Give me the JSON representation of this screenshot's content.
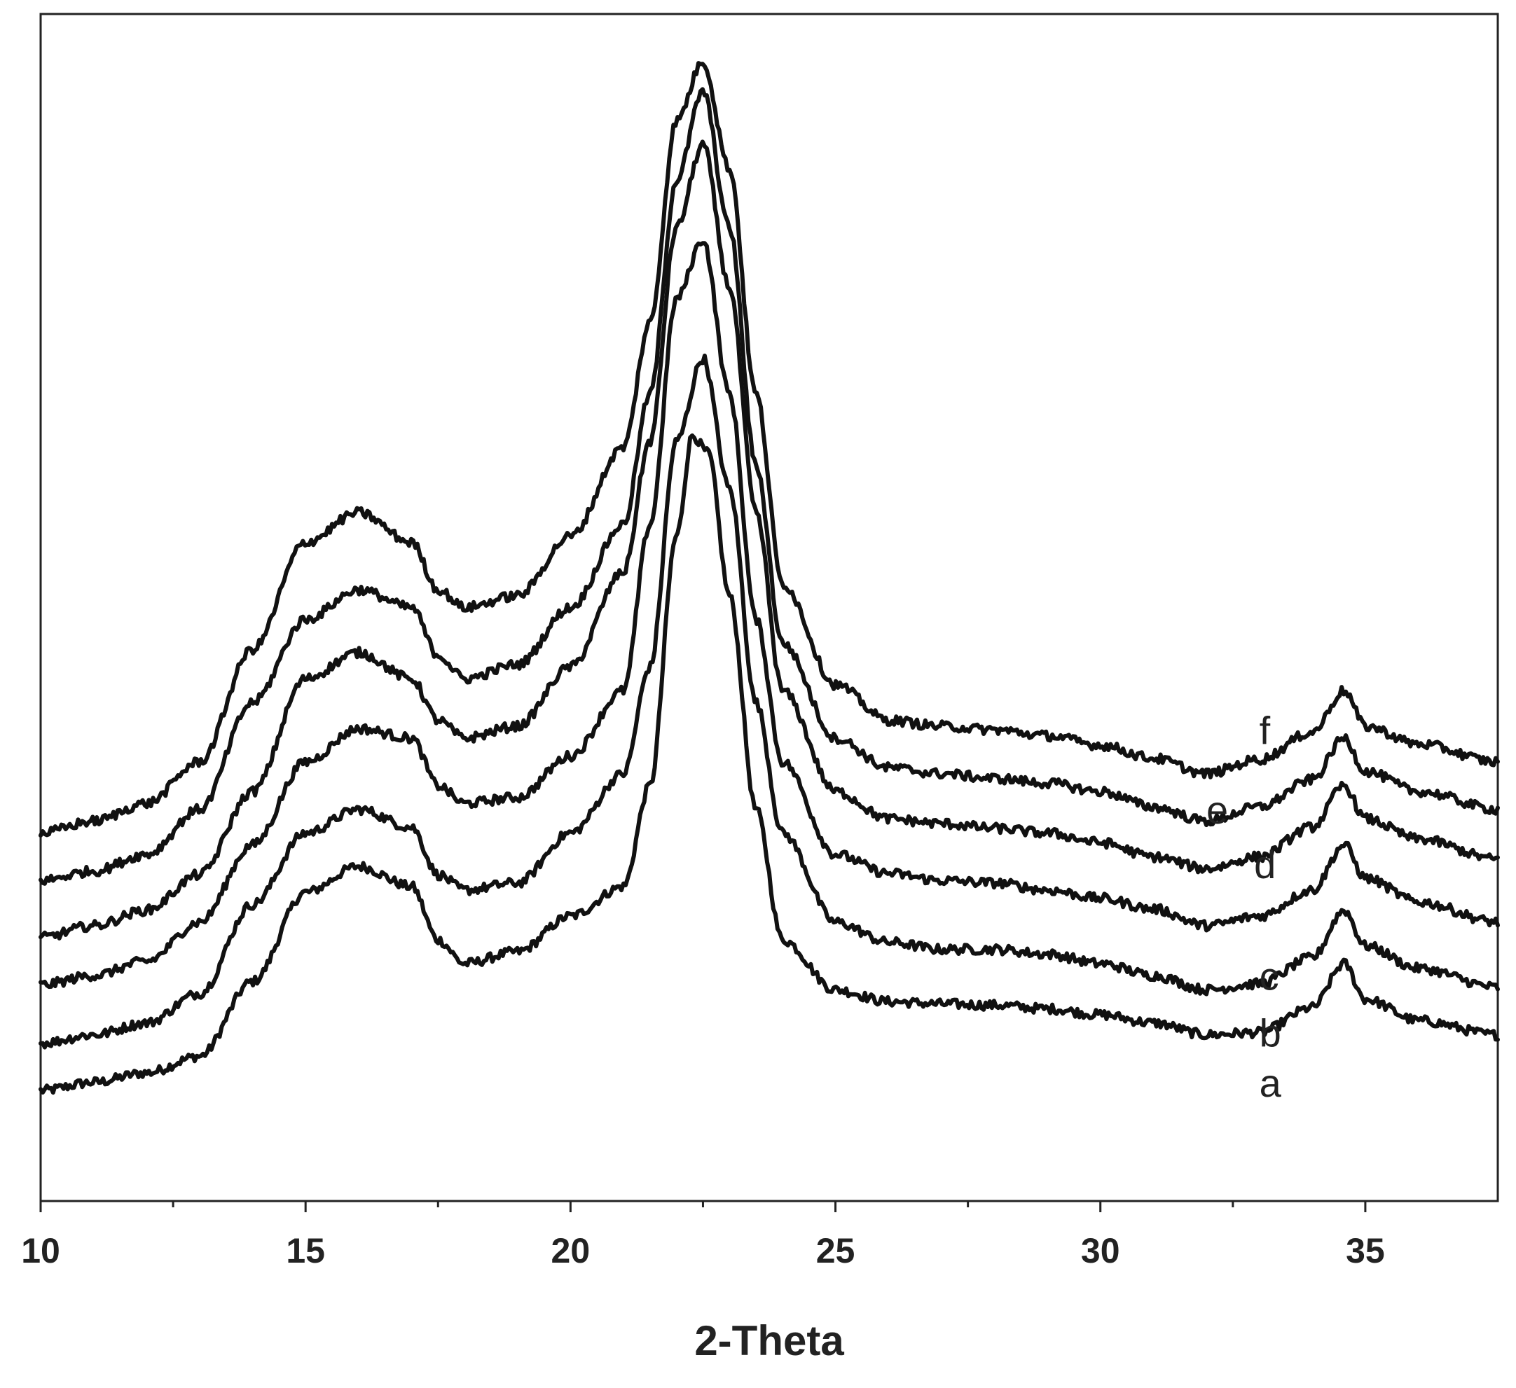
{
  "chart_data": {
    "type": "line",
    "title": "",
    "xlabel": "2-Theta",
    "ylabel": "",
    "xlim": [
      10,
      37.5
    ],
    "ylim": [
      0,
      1
    ],
    "xticks": [
      10,
      15,
      20,
      25,
      30,
      35
    ],
    "minor_xticks": [
      12.5,
      17.5,
      22.5,
      27.5,
      32.5
    ],
    "grid": false,
    "legend": "none",
    "line_color": "#111111",
    "series": [
      {
        "name": "a",
        "points": [
          [
            10,
            0.093
          ],
          [
            11,
            0.1
          ],
          [
            12,
            0.108
          ],
          [
            13,
            0.122
          ],
          [
            14,
            0.185
          ],
          [
            15,
            0.26
          ],
          [
            16,
            0.282
          ],
          [
            17,
            0.265
          ],
          [
            17.5,
            0.22
          ],
          [
            18,
            0.2
          ],
          [
            19,
            0.21
          ],
          [
            20,
            0.24
          ],
          [
            21,
            0.265
          ],
          [
            21.5,
            0.35
          ],
          [
            22,
            0.56
          ],
          [
            22.3,
            0.645
          ],
          [
            22.6,
            0.63
          ],
          [
            23,
            0.51
          ],
          [
            23.5,
            0.33
          ],
          [
            24,
            0.22
          ],
          [
            25,
            0.178
          ],
          [
            26,
            0.168
          ],
          [
            27,
            0.166
          ],
          [
            28,
            0.165
          ],
          [
            29,
            0.162
          ],
          [
            30,
            0.157
          ],
          [
            31,
            0.15
          ],
          [
            32,
            0.14
          ],
          [
            33,
            0.142
          ],
          [
            34,
            0.163
          ],
          [
            34.6,
            0.2
          ],
          [
            35,
            0.17
          ],
          [
            36,
            0.152
          ],
          [
            37.5,
            0.14
          ]
        ],
        "label_at": [
          33,
          0.088
        ]
      },
      {
        "name": "b",
        "points": [
          [
            10,
            0.133
          ],
          [
            11,
            0.14
          ],
          [
            12,
            0.15
          ],
          [
            13,
            0.175
          ],
          [
            14,
            0.25
          ],
          [
            15,
            0.31
          ],
          [
            16,
            0.33
          ],
          [
            17,
            0.315
          ],
          [
            17.5,
            0.275
          ],
          [
            18,
            0.262
          ],
          [
            19,
            0.268
          ],
          [
            20,
            0.31
          ],
          [
            21,
            0.36
          ],
          [
            21.5,
            0.45
          ],
          [
            22,
            0.64
          ],
          [
            22.5,
            0.71
          ],
          [
            23,
            0.6
          ],
          [
            23.5,
            0.42
          ],
          [
            24,
            0.31
          ],
          [
            25,
            0.235
          ],
          [
            26,
            0.218
          ],
          [
            27,
            0.212
          ],
          [
            28,
            0.212
          ],
          [
            29,
            0.208
          ],
          [
            30,
            0.2
          ],
          [
            31,
            0.19
          ],
          [
            32,
            0.178
          ],
          [
            33,
            0.183
          ],
          [
            34,
            0.205
          ],
          [
            34.6,
            0.245
          ],
          [
            35,
            0.215
          ],
          [
            36,
            0.196
          ],
          [
            37.5,
            0.18
          ]
        ],
        "label_at": [
          33,
          0.13
        ]
      },
      {
        "name": "c",
        "points": [
          [
            10,
            0.182
          ],
          [
            11,
            0.19
          ],
          [
            12,
            0.202
          ],
          [
            13,
            0.235
          ],
          [
            14,
            0.3
          ],
          [
            15,
            0.37
          ],
          [
            16,
            0.398
          ],
          [
            17,
            0.39
          ],
          [
            17.5,
            0.35
          ],
          [
            18,
            0.335
          ],
          [
            19,
            0.34
          ],
          [
            20,
            0.375
          ],
          [
            21,
            0.43
          ],
          [
            21.5,
            0.57
          ],
          [
            22,
            0.76
          ],
          [
            22.5,
            0.81
          ],
          [
            23,
            0.68
          ],
          [
            23.5,
            0.49
          ],
          [
            24,
            0.37
          ],
          [
            25,
            0.292
          ],
          [
            26,
            0.276
          ],
          [
            27,
            0.27
          ],
          [
            28,
            0.268
          ],
          [
            29,
            0.262
          ],
          [
            30,
            0.255
          ],
          [
            31,
            0.246
          ],
          [
            32,
            0.232
          ],
          [
            33,
            0.24
          ],
          [
            34,
            0.262
          ],
          [
            34.6,
            0.3
          ],
          [
            35,
            0.272
          ],
          [
            36,
            0.252
          ],
          [
            37.5,
            0.235
          ]
        ],
        "label_at": [
          33,
          0.178
        ]
      },
      {
        "name": "d",
        "points": [
          [
            10,
            0.222
          ],
          [
            11,
            0.232
          ],
          [
            12,
            0.245
          ],
          [
            13,
            0.275
          ],
          [
            14,
            0.345
          ],
          [
            15,
            0.44
          ],
          [
            16,
            0.462
          ],
          [
            17,
            0.44
          ],
          [
            17.5,
            0.405
          ],
          [
            18,
            0.39
          ],
          [
            19,
            0.4
          ],
          [
            20,
            0.45
          ],
          [
            21,
            0.53
          ],
          [
            21.5,
            0.64
          ],
          [
            22,
            0.82
          ],
          [
            22.5,
            0.89
          ],
          [
            23,
            0.77
          ],
          [
            23.5,
            0.58
          ],
          [
            24,
            0.43
          ],
          [
            25,
            0.345
          ],
          [
            26,
            0.322
          ],
          [
            27,
            0.318
          ],
          [
            28,
            0.314
          ],
          [
            29,
            0.31
          ],
          [
            30,
            0.302
          ],
          [
            31,
            0.29
          ],
          [
            32,
            0.28
          ],
          [
            33,
            0.29
          ],
          [
            34,
            0.315
          ],
          [
            34.6,
            0.35
          ],
          [
            35,
            0.322
          ],
          [
            36,
            0.305
          ],
          [
            37.5,
            0.288
          ]
        ],
        "label_at": [
          32.9,
          0.272
        ]
      },
      {
        "name": "e",
        "points": [
          [
            10,
            0.27
          ],
          [
            11,
            0.278
          ],
          [
            12,
            0.292
          ],
          [
            13,
            0.33
          ],
          [
            14,
            0.42
          ],
          [
            15,
            0.49
          ],
          [
            16,
            0.515
          ],
          [
            17,
            0.5
          ],
          [
            17.5,
            0.46
          ],
          [
            18,
            0.44
          ],
          [
            19,
            0.452
          ],
          [
            20,
            0.5
          ],
          [
            21,
            0.57
          ],
          [
            21.5,
            0.68
          ],
          [
            22,
            0.86
          ],
          [
            22.5,
            0.935
          ],
          [
            23,
            0.82
          ],
          [
            23.5,
            0.62
          ],
          [
            24,
            0.47
          ],
          [
            25,
            0.39
          ],
          [
            26,
            0.365
          ],
          [
            27,
            0.36
          ],
          [
            28,
            0.356
          ],
          [
            29,
            0.352
          ],
          [
            30,
            0.345
          ],
          [
            31,
            0.332
          ],
          [
            32,
            0.32
          ],
          [
            33,
            0.332
          ],
          [
            34,
            0.355
          ],
          [
            34.6,
            0.39
          ],
          [
            35,
            0.362
          ],
          [
            36,
            0.345
          ],
          [
            37.5,
            0.33
          ]
        ],
        "label_at": [
          32,
          0.318
        ]
      },
      {
        "name": "f",
        "points": [
          [
            10,
            0.31
          ],
          [
            11,
            0.32
          ],
          [
            12,
            0.335
          ],
          [
            13,
            0.37
          ],
          [
            14,
            0.465
          ],
          [
            15,
            0.555
          ],
          [
            16,
            0.58
          ],
          [
            17,
            0.555
          ],
          [
            17.5,
            0.515
          ],
          [
            18,
            0.5
          ],
          [
            19,
            0.51
          ],
          [
            20,
            0.56
          ],
          [
            21,
            0.635
          ],
          [
            21.5,
            0.74
          ],
          [
            22,
            0.91
          ],
          [
            22.5,
            0.96
          ],
          [
            23,
            0.87
          ],
          [
            23.5,
            0.68
          ],
          [
            24,
            0.52
          ],
          [
            25,
            0.435
          ],
          [
            26,
            0.405
          ],
          [
            27,
            0.4
          ],
          [
            28,
            0.397
          ],
          [
            29,
            0.392
          ],
          [
            30,
            0.384
          ],
          [
            31,
            0.373
          ],
          [
            32,
            0.36
          ],
          [
            33,
            0.372
          ],
          [
            34,
            0.395
          ],
          [
            34.6,
            0.43
          ],
          [
            35,
            0.4
          ],
          [
            36,
            0.385
          ],
          [
            37.5,
            0.37
          ]
        ],
        "label_at": [
          33,
          0.385
        ]
      }
    ]
  }
}
